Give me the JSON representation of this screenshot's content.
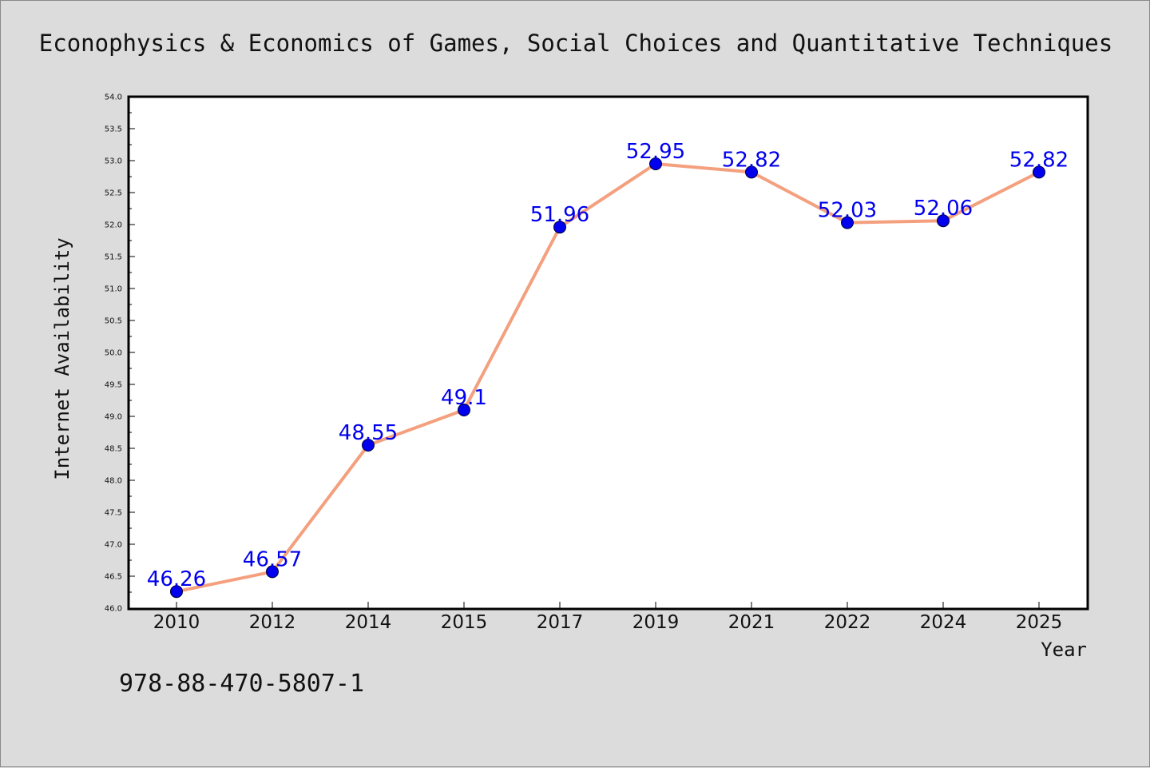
{
  "chart_data": {
    "type": "line",
    "title": "Econophysics & Economics of Games, Social Choices and Quantitative Techniques",
    "xlabel": "Year",
    "ylabel": "Internet Availability",
    "categories": [
      "2010",
      "2012",
      "2014",
      "2015",
      "2017",
      "2019",
      "2021",
      "2022",
      "2024",
      "2025"
    ],
    "values": [
      46.26,
      46.57,
      48.55,
      49.1,
      51.96,
      52.95,
      52.82,
      52.03,
      52.06,
      52.82
    ],
    "data_labels": [
      "46.26",
      "46.57",
      "48.55",
      "49.1",
      "51.96",
      "52.95",
      "52.82",
      "52.03",
      "52.06",
      "52.82"
    ],
    "ylim": [
      46.0,
      54.0
    ],
    "ytick_step": 0.5,
    "ytick_labels": [
      "46.0",
      "46.5",
      "47.0",
      "47.5",
      "48.0",
      "48.5",
      "49.0",
      "49.5",
      "50.0",
      "50.5",
      "51.0",
      "51.5",
      "52.0",
      "52.5",
      "53.0",
      "53.5",
      "54.0"
    ],
    "grid": false,
    "legend": "none",
    "line_color": "#f4a07e",
    "marker_color": "#0000ee",
    "label_color": "#0000ee",
    "plot_background": "#ffffff",
    "figure_background": "#dcdcdc"
  },
  "footer": {
    "isbn": "978-88-470-5807-1"
  }
}
